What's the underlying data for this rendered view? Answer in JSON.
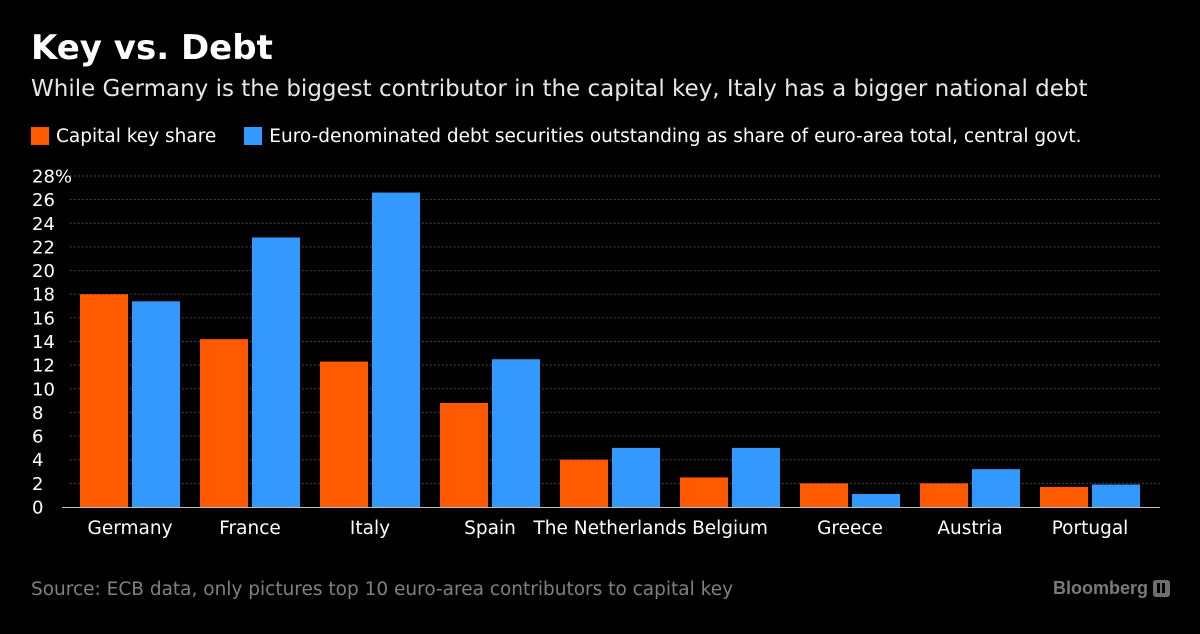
{
  "chart_data": {
    "type": "bar",
    "title": "Key vs. Debt",
    "subtitle": "While Germany is the biggest contributor in the capital key, Italy has a bigger national debt",
    "categories": [
      "Germany",
      "France",
      "Italy",
      "Spain",
      "The Netherlands",
      "Belgium",
      "Greece",
      "Austria",
      "Portugal"
    ],
    "series": [
      {
        "name": "Capital key share",
        "color": "#ff5a00",
        "values": [
          18.0,
          14.2,
          12.3,
          8.8,
          4.0,
          2.5,
          2.0,
          2.0,
          1.7
        ]
      },
      {
        "name": "Euro-denominated debt securities outstanding as share of euro-area total, central govt.",
        "color": "#3399ff",
        "values": [
          17.4,
          22.8,
          26.6,
          12.5,
          5.0,
          5.0,
          1.1,
          3.2,
          1.9
        ]
      }
    ],
    "xlabel": "",
    "ylabel": "",
    "ylim": [
      0,
      28
    ],
    "yticks": [
      "0",
      "2",
      "4",
      "6",
      "8",
      "10",
      "12",
      "14",
      "16",
      "18",
      "20",
      "22",
      "24",
      "26",
      "28%"
    ],
    "grid": true,
    "legend": "top-left"
  },
  "source": "Source: ECB data, only pictures top 10 euro-area contributors to capital key",
  "brand": "Bloomberg"
}
